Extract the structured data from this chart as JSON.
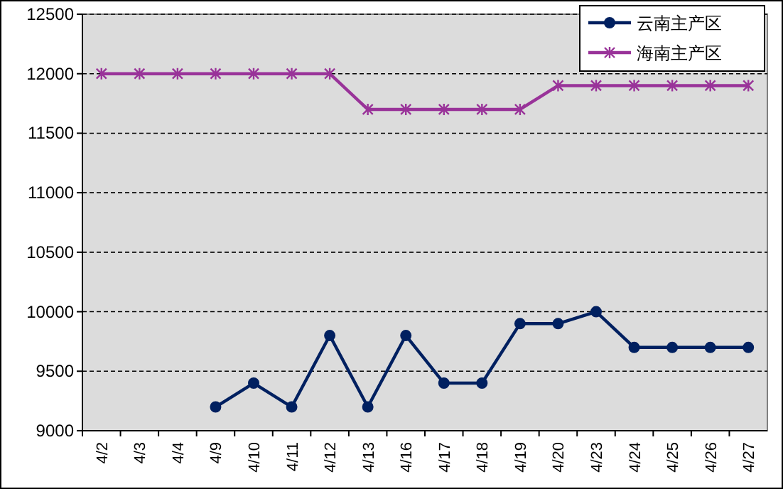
{
  "chart_data": {
    "type": "line",
    "categories": [
      "4/2",
      "4/3",
      "4/4",
      "4/9",
      "4/10",
      "4/11",
      "4/12",
      "4/13",
      "4/16",
      "4/17",
      "4/18",
      "4/19",
      "4/20",
      "4/23",
      "4/24",
      "4/25",
      "4/26",
      "4/27"
    ],
    "series": [
      {
        "name": "云南主产区",
        "color": "#002060",
        "marker": "circle",
        "values": [
          null,
          null,
          null,
          9200,
          9400,
          9200,
          9800,
          9200,
          9800,
          9400,
          9400,
          9900,
          9900,
          10000,
          9700,
          9700,
          9700,
          9700
        ]
      },
      {
        "name": "海南主产区",
        "color": "#993399",
        "marker": "cross",
        "values": [
          12000,
          12000,
          12000,
          12000,
          12000,
          12000,
          12000,
          11700,
          11700,
          11700,
          11700,
          11700,
          11900,
          11900,
          11900,
          11900,
          11900,
          11900
        ]
      }
    ],
    "ylim": [
      9000,
      12500
    ],
    "yticks": [
      9000,
      9500,
      10000,
      10500,
      11000,
      11500,
      12000,
      12500
    ],
    "grid": "y",
    "legend": "top right",
    "line_style": "solid"
  }
}
